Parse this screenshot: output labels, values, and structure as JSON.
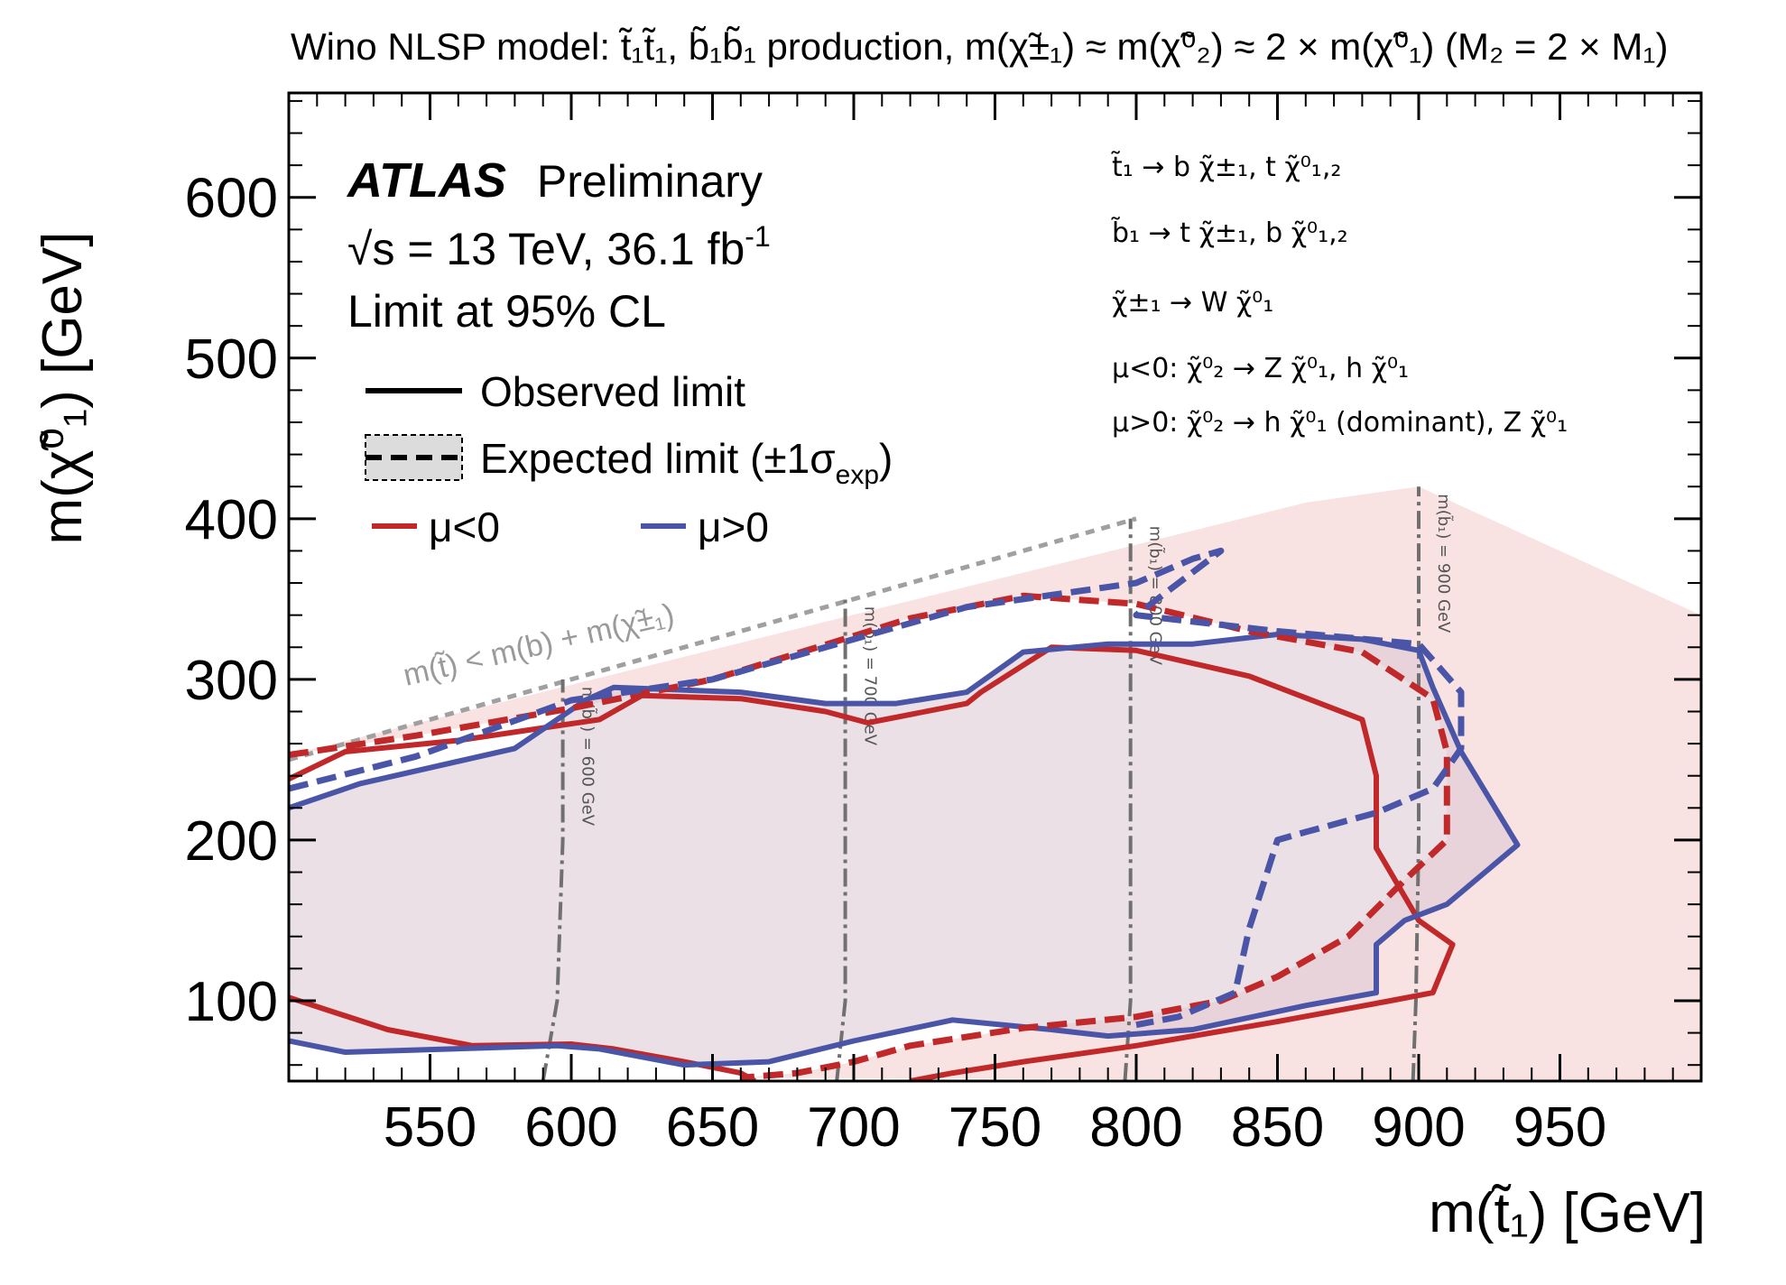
{
  "chart_data": {
    "type": "line",
    "title": "Wino NLSP model: t̃₁t̃₁, b̃₁b̃₁ production, m(χ̃±₁) ≈ m(χ̃⁰₂) ≈ 2 × m(χ̃⁰₁) (M₂ = 2 × M₁)",
    "xlabel": "m(t̃₁) [GeV]",
    "ylabel": "m(χ̃⁰₁) [GeV]",
    "xlim": [
      500,
      1000
    ],
    "ylim": [
      50,
      665
    ],
    "x_ticks": [
      550,
      600,
      650,
      700,
      750,
      800,
      850,
      900,
      950
    ],
    "y_ticks": [
      100,
      200,
      300,
      400,
      500,
      600
    ],
    "experiment": "ATLAS",
    "experiment_status": "Preliminary",
    "energy_lumi": "√s = 13 TeV, 36.1 fb",
    "lumi_exponent": "-1",
    "cl_text": "Limit at 95% CL",
    "legend": {
      "observed": "Observed limit",
      "expected": "Expected limit (±1σ",
      "expected_sub": "exp",
      "expected_close": ")",
      "mu_neg": "μ<0",
      "mu_pos": "μ>0"
    },
    "decays": [
      "t̃₁ → b χ̃±₁, t χ̃⁰₁,₂",
      "b̃₁ → t χ̃±₁, b χ̃⁰₁,₂",
      "χ̃±₁ → W χ̃⁰₁",
      "μ<0:  χ̃⁰₂ → Z χ̃⁰₁, h χ̃⁰₁",
      "μ>0:  χ̃⁰₂ → h χ̃⁰₁ (dominant), Z χ̃⁰₁"
    ],
    "kinematic_limit_label": "m(t̃) < m(b) + m(χ̃±₁)",
    "kinematic_limit_line": [
      [
        500,
        250
      ],
      [
        800,
        400
      ]
    ],
    "sbottom_lines": [
      {
        "label": "m(b̃₁) = 600 GeV",
        "points": [
          [
            590,
            50
          ],
          [
            595,
            100
          ],
          [
            597,
            200
          ],
          [
            597,
            300
          ]
        ]
      },
      {
        "label": "m(b̃₁) = 700 GeV",
        "points": [
          [
            694,
            50
          ],
          [
            697,
            100
          ],
          [
            697,
            200
          ],
          [
            697,
            300
          ],
          [
            697,
            350
          ]
        ]
      },
      {
        "label": "m(b̃₁) = 800 GeV",
        "points": [
          [
            796,
            50
          ],
          [
            798,
            100
          ],
          [
            798,
            200
          ],
          [
            798,
            300
          ],
          [
            798,
            400
          ]
        ]
      },
      {
        "label": "m(b̃₁) = 900 GeV",
        "points": [
          [
            898,
            50
          ],
          [
            899,
            100
          ],
          [
            900,
            200
          ],
          [
            900,
            300
          ],
          [
            900,
            420
          ]
        ]
      }
    ],
    "colors": {
      "mu_neg": "#c0282a",
      "mu_pos": "#4a55a8",
      "band_neg": "#f3d0cf",
      "band_pos": "#d9dcec",
      "overlap": "#d9c6d2",
      "sbottom_line": "#707070",
      "kin_line": "#a0a0a0"
    },
    "series": [
      {
        "name": "Observed limit μ<0",
        "style": "solid",
        "color": "#c0282a",
        "points": [
          [
            500,
            238
          ],
          [
            520,
            255
          ],
          [
            560,
            262
          ],
          [
            610,
            275
          ],
          [
            625,
            290
          ],
          [
            660,
            288
          ],
          [
            690,
            280
          ],
          [
            705,
            273
          ],
          [
            740,
            285
          ],
          [
            745,
            292
          ],
          [
            770,
            320
          ],
          [
            800,
            318
          ],
          [
            840,
            302
          ],
          [
            880,
            275
          ],
          [
            885,
            240
          ],
          [
            885,
            195
          ],
          [
            900,
            150
          ],
          [
            912,
            135
          ],
          [
            905,
            105
          ],
          [
            890,
            100
          ],
          [
            850,
            87
          ],
          [
            800,
            72
          ],
          [
            760,
            62
          ],
          [
            735,
            55
          ],
          [
            720,
            50
          ]
        ]
      },
      {
        "name": "Observed limit μ<0 (low)",
        "style": "solid",
        "color": "#c0282a",
        "points": [
          [
            500,
            102
          ],
          [
            535,
            82
          ],
          [
            565,
            72
          ],
          [
            600,
            73
          ],
          [
            615,
            70
          ],
          [
            640,
            62
          ],
          [
            660,
            55
          ],
          [
            665,
            50
          ]
        ]
      },
      {
        "name": "Observed limit μ>0",
        "style": "solid",
        "color": "#4a55a8",
        "points": [
          [
            500,
            220
          ],
          [
            525,
            235
          ],
          [
            580,
            257
          ],
          [
            605,
            287
          ],
          [
            615,
            295
          ],
          [
            660,
            292
          ],
          [
            690,
            285
          ],
          [
            715,
            285
          ],
          [
            740,
            292
          ],
          [
            760,
            317
          ],
          [
            790,
            322
          ],
          [
            820,
            322
          ],
          [
            850,
            328
          ],
          [
            880,
            325
          ],
          [
            900,
            318
          ],
          [
            905,
            295
          ],
          [
            915,
            255
          ],
          [
            935,
            197
          ],
          [
            910,
            160
          ],
          [
            895,
            150
          ],
          [
            885,
            135
          ],
          [
            885,
            105
          ],
          [
            860,
            97
          ],
          [
            820,
            82
          ],
          [
            790,
            78
          ],
          [
            770,
            82
          ],
          [
            735,
            88
          ],
          [
            700,
            75
          ],
          [
            670,
            62
          ],
          [
            640,
            60
          ],
          [
            610,
            70
          ],
          [
            595,
            72
          ],
          [
            520,
            68
          ],
          [
            500,
            75
          ]
        ]
      },
      {
        "name": "Expected limit μ<0",
        "style": "dashed",
        "color": "#c0282a",
        "points": [
          [
            500,
            253
          ],
          [
            545,
            265
          ],
          [
            600,
            282
          ],
          [
            650,
            300
          ],
          [
            700,
            327
          ],
          [
            720,
            338
          ],
          [
            760,
            352
          ],
          [
            800,
            347
          ],
          [
            840,
            330
          ],
          [
            880,
            317
          ],
          [
            905,
            288
          ],
          [
            910,
            255
          ],
          [
            910,
            200
          ],
          [
            895,
            175
          ],
          [
            875,
            140
          ],
          [
            850,
            115
          ],
          [
            830,
            100
          ],
          [
            800,
            90
          ],
          [
            760,
            83
          ],
          [
            720,
            72
          ],
          [
            700,
            62
          ],
          [
            680,
            55
          ],
          [
            660,
            52
          ]
        ]
      },
      {
        "name": "Expected limit μ>0",
        "style": "dashed",
        "color": "#4a55a8",
        "points": [
          [
            500,
            232
          ],
          [
            545,
            252
          ],
          [
            600,
            287
          ],
          [
            650,
            300
          ],
          [
            700,
            325
          ],
          [
            740,
            345
          ],
          [
            800,
            360
          ],
          [
            820,
            375
          ],
          [
            830,
            380
          ],
          [
            800,
            340
          ],
          [
            850,
            330
          ],
          [
            900,
            322
          ],
          [
            915,
            292
          ],
          [
            915,
            257
          ],
          [
            905,
            232
          ],
          [
            885,
            217
          ],
          [
            860,
            205
          ],
          [
            850,
            200
          ],
          [
            840,
            145
          ],
          [
            835,
            105
          ],
          [
            815,
            90
          ],
          [
            800,
            85
          ]
        ]
      }
    ]
  }
}
